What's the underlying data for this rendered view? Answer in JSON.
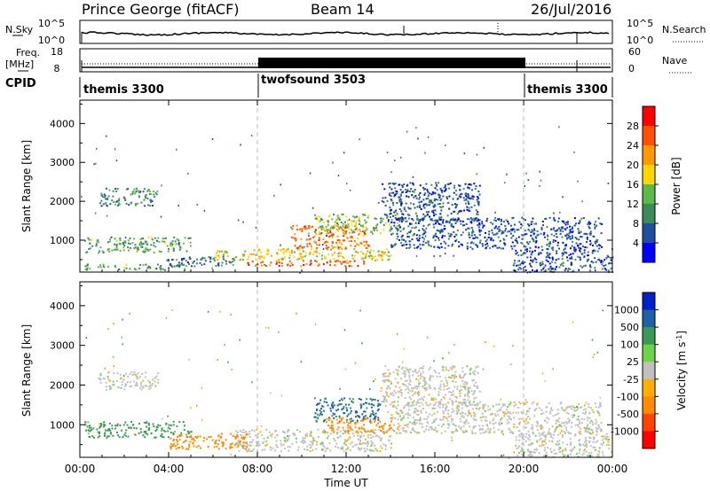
{
  "header": {
    "station": "Prince George (fitACF)",
    "beam": "Beam 14",
    "date": "26/Jul/2016"
  },
  "strips": {
    "nsky_label": "N.Sky",
    "nsky_ticks": [
      "10^5",
      "10^0"
    ],
    "nsearch_label": "N.Search",
    "nsearch_ticks": [
      "10^5",
      "10^0"
    ],
    "freq_label_1": "Freq.",
    "freq_label_2": "[MHz]",
    "freq_ticks": [
      "18",
      "8"
    ],
    "nave_label": "Nave",
    "nave_ticks": [
      "60",
      "0"
    ],
    "cpid_label": "CPID",
    "cpid_segments": [
      {
        "label": "themis 3300",
        "start_hour": 0,
        "end_hour": 8
      },
      {
        "label": "twofsound 3503",
        "start_hour": 8,
        "end_hour": 20
      },
      {
        "label": "themis 3300",
        "start_hour": 20,
        "end_hour": 24
      }
    ]
  },
  "colors": {
    "power": [
      "#0000ff",
      "#1f4fa0",
      "#3f8a5a",
      "#5fb84a",
      "#ffd700",
      "#ff9900",
      "#ff5000",
      "#ff0000"
    ],
    "velocity": [
      "#ff0000",
      "#ff4400",
      "#ff8c00",
      "#ffb000",
      "#c0c0c0",
      "#6fd34a",
      "#3a9a55",
      "#2060a8",
      "#0020c8"
    ]
  },
  "chart_data": [
    {
      "type": "heatmap",
      "title": "Power",
      "xlabel": "",
      "ylabel": "Slant Range [km]",
      "x_range_hours": [
        0,
        24
      ],
      "ylim": [
        180,
        4600
      ],
      "yticks": [
        1000,
        2000,
        3000,
        4000
      ],
      "colorbar": {
        "label": "Power [dB]",
        "ticks": [
          "28",
          "24",
          "20",
          "16",
          "12",
          "8",
          "4"
        ],
        "range": [
          0,
          32
        ]
      },
      "echo_regions": [
        {
          "start_hour": 0.0,
          "end_hour": 5.0,
          "range_km": [
            250,
            400
          ],
          "value": 12
        },
        {
          "start_hour": 3.8,
          "end_hour": 7.0,
          "range_km": [
            350,
            600
          ],
          "value": 8
        },
        {
          "start_hour": 7.5,
          "end_hour": 13.0,
          "range_km": [
            350,
            500
          ],
          "value": 26
        },
        {
          "start_hour": 6.0,
          "end_hour": 14.0,
          "range_km": [
            500,
            800
          ],
          "value": 18
        },
        {
          "start_hour": 9.5,
          "end_hour": 13.0,
          "range_km": [
            800,
            1400
          ],
          "value": 24
        },
        {
          "start_hour": 10.5,
          "end_hour": 14.5,
          "range_km": [
            1200,
            1700
          ],
          "value": 14
        },
        {
          "start_hour": 0.2,
          "end_hour": 5.0,
          "range_km": [
            700,
            1100
          ],
          "value": 12
        },
        {
          "start_hour": 0.8,
          "end_hour": 3.5,
          "range_km": [
            1900,
            2350
          ],
          "value": 10
        },
        {
          "start_hour": 14.0,
          "end_hour": 23.5,
          "range_km": [
            800,
            1600
          ],
          "value": 6
        },
        {
          "start_hour": 13.5,
          "end_hour": 18.0,
          "range_km": [
            1500,
            2500
          ],
          "value": 6
        },
        {
          "start_hour": 19.5,
          "end_hour": 24.0,
          "range_km": [
            200,
            800
          ],
          "value": 6
        }
      ]
    },
    {
      "type": "heatmap",
      "title": "Velocity",
      "xlabel": "Time UT",
      "ylabel": "Slant Range [km]",
      "x_range_hours": [
        0,
        24
      ],
      "xticks": [
        "00:00",
        "04:00",
        "08:00",
        "12:00",
        "16:00",
        "20:00",
        "00:00"
      ],
      "ylim": [
        180,
        4600
      ],
      "yticks": [
        1000,
        2000,
        3000,
        4000
      ],
      "colorbar": {
        "label": "Velocity [m s-1]",
        "ticks": [
          "1000",
          "500",
          "100",
          "25",
          "-25",
          "-100",
          "-500",
          "-1000"
        ],
        "range": [
          -1000,
          1000
        ]
      },
      "echo_regions": [
        {
          "start_hour": 7.0,
          "end_hour": 14.0,
          "range_km": [
            350,
            900
          ],
          "value": 0
        },
        {
          "start_hour": 0.2,
          "end_hour": 5.0,
          "range_km": [
            700,
            1100
          ],
          "value": 150
        },
        {
          "start_hour": 4.0,
          "end_hour": 7.5,
          "range_km": [
            400,
            800
          ],
          "value": -250
        },
        {
          "start_hour": 0.8,
          "end_hour": 3.5,
          "range_km": [
            1900,
            2350
          ],
          "value": 0
        },
        {
          "start_hour": 10.5,
          "end_hour": 13.5,
          "range_km": [
            1100,
            1700
          ],
          "value": 600
        },
        {
          "start_hour": 11.0,
          "end_hour": 14.0,
          "range_km": [
            800,
            1200
          ],
          "value": -300
        },
        {
          "start_hour": 13.5,
          "end_hour": 18.0,
          "range_km": [
            1500,
            2500
          ],
          "value": 0
        },
        {
          "start_hour": 14.0,
          "end_hour": 23.5,
          "range_km": [
            800,
            1600
          ],
          "value": 0
        },
        {
          "start_hour": 19.5,
          "end_hour": 24.0,
          "range_km": [
            200,
            800
          ],
          "value": 0
        }
      ]
    }
  ]
}
